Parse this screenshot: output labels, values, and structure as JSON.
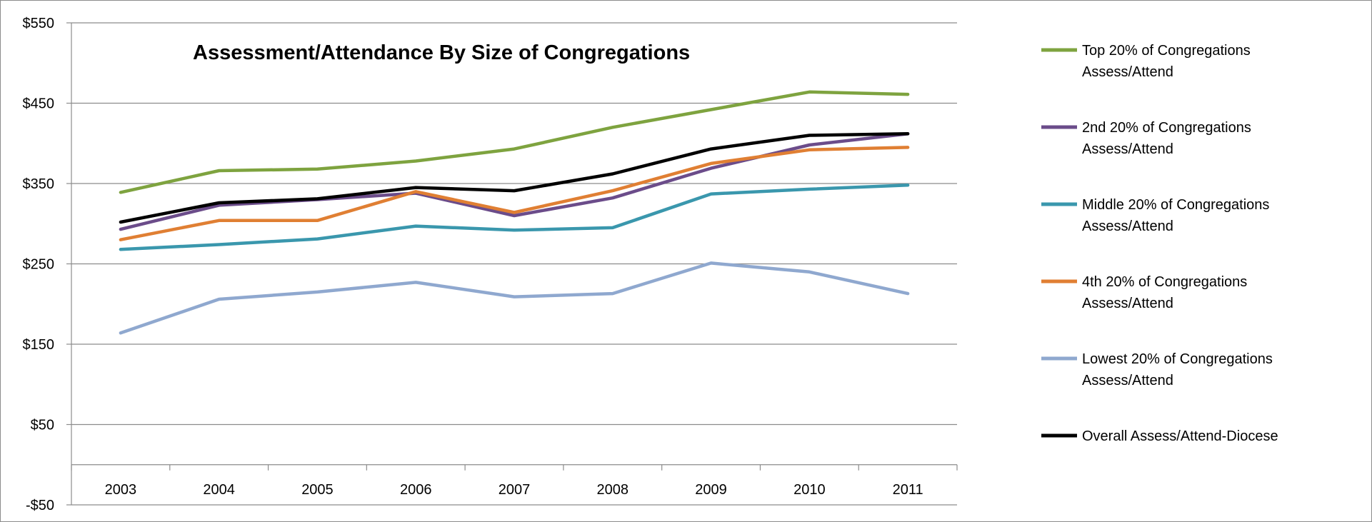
{
  "chart_data": {
    "type": "line",
    "title": "Assessment/Attendance By Size of Congregations",
    "xlabel": "",
    "ylabel": "",
    "categories": [
      "2003",
      "2004",
      "2005",
      "2006",
      "2007",
      "2008",
      "2009",
      "2010",
      "2011"
    ],
    "ylim": [
      -50,
      550
    ],
    "y_ticks": [
      -50,
      50,
      150,
      250,
      350,
      450,
      550
    ],
    "y_tick_labels": [
      "-$50",
      "$50",
      "$150",
      "$250",
      "$350",
      "$450",
      "$550"
    ],
    "grid": true,
    "legend_position": "right",
    "series": [
      {
        "name": "Top 20% of Congregations Assess/Attend",
        "legend_lines": [
          "Top 20% of Congregations",
          "Assess/Attend"
        ],
        "color": "#7ea33f",
        "values": [
          339,
          366,
          368,
          378,
          393,
          420,
          442,
          464,
          461
        ]
      },
      {
        "name": "2nd 20% of Congregations Assess/Attend",
        "legend_lines": [
          "2nd 20% of Congregations",
          "Assess/Attend"
        ],
        "color": "#6b4c8a",
        "values": [
          293,
          323,
          330,
          338,
          310,
          332,
          369,
          398,
          412
        ]
      },
      {
        "name": "Middle 20% of Congregations Assess/Attend",
        "legend_lines": [
          "Middle 20% of Congregations",
          "Assess/Attend"
        ],
        "color": "#3a97ad",
        "values": [
          268,
          274,
          281,
          297,
          292,
          295,
          337,
          343,
          348
        ]
      },
      {
        "name": "4th 20% of Congregations Assess/Attend",
        "legend_lines": [
          "4th 20% of Congregations",
          "Assess/Attend"
        ],
        "color": "#e07f33",
        "values": [
          280,
          304,
          304,
          340,
          314,
          341,
          375,
          392,
          395
        ]
      },
      {
        "name": "Lowest 20% of Congregations Assess/Attend",
        "legend_lines": [
          "Lowest 20% of Congregations",
          "Assess/Attend"
        ],
        "color": "#8fa8cf",
        "values": [
          164,
          206,
          215,
          227,
          209,
          213,
          251,
          240,
          213
        ]
      },
      {
        "name": "Overall Assess/Attend-Diocese",
        "legend_lines": [
          "Overall Assess/Attend-Diocese"
        ],
        "color": "#000000",
        "values": [
          302,
          326,
          331,
          345,
          341,
          362,
          393,
          410,
          412
        ]
      }
    ]
  }
}
